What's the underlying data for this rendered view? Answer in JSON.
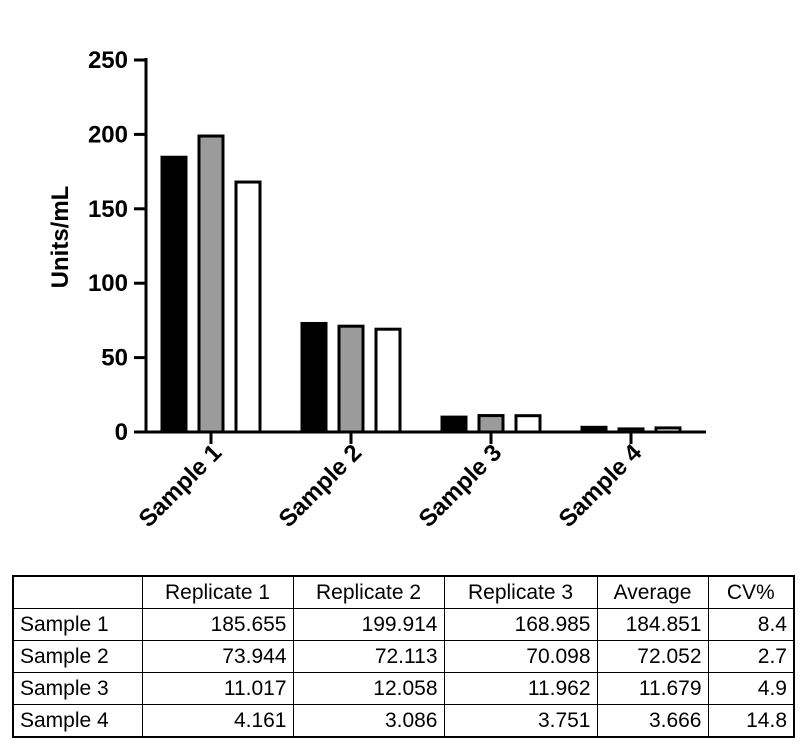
{
  "chart_data": {
    "type": "bar",
    "categories": [
      "Sample 1",
      "Sample 2",
      "Sample 3",
      "Sample 4"
    ],
    "series": [
      {
        "name": "Replicate 1",
        "values": [
          185.655,
          73.944,
          11.017,
          4.161
        ],
        "color": "#000000"
      },
      {
        "name": "Replicate 2",
        "values": [
          199.914,
          72.113,
          12.058,
          3.086
        ],
        "color": "#9b9b9b"
      },
      {
        "name": "Replicate 3",
        "values": [
          168.985,
          70.098,
          11.962,
          3.751
        ],
        "color": "#ffffff"
      }
    ],
    "ylabel": "Units/mL",
    "xlabel": "",
    "ylim": [
      0,
      250
    ],
    "yticks": [
      0,
      50,
      100,
      150,
      200,
      250
    ],
    "grid": false,
    "legend": "none"
  },
  "table": {
    "headers": [
      "",
      "Replicate 1",
      "Replicate 2",
      "Replicate 3",
      "Average",
      "CV%"
    ],
    "rows": [
      [
        "Sample 1",
        "185.655",
        "199.914",
        "168.985",
        "184.851",
        "8.4"
      ],
      [
        "Sample 2",
        "73.944",
        "72.113",
        "70.098",
        "72.052",
        "2.7"
      ],
      [
        "Sample 3",
        "11.017",
        "12.058",
        "11.962",
        "11.679",
        "4.9"
      ],
      [
        "Sample 4",
        "4.161",
        "3.086",
        "3.751",
        "3.666",
        "14.8"
      ]
    ]
  }
}
